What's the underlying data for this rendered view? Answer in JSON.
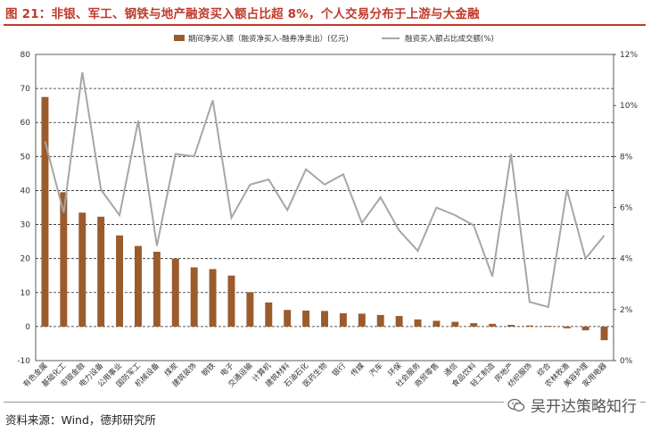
{
  "figure": {
    "title": "图 21：非银、军工、钢铁与地产融资买入额占比超 8%，个人交易分布于上游与大金融",
    "source": "资料来源：Wind，德邦研究所",
    "watermark": "吴开达策略知行",
    "watermark_icon": "wechat-icon"
  },
  "chart_data": {
    "type": "bar",
    "title": "",
    "categories": [
      "有色金属",
      "基础化工",
      "非银金融",
      "电力设备",
      "公用事业",
      "国防军工",
      "机械设备",
      "煤炭",
      "建筑装饰",
      "钢铁",
      "电子",
      "交通运输",
      "计算机",
      "建筑材料",
      "石油石化",
      "医药生物",
      "银行",
      "传媒",
      "汽车",
      "环保",
      "社会服务",
      "商贸零售",
      "通信",
      "食品饮料",
      "轻工制造",
      "房地产",
      "纺织服饰",
      "综合",
      "农林牧渔",
      "美容护理",
      "家用电器"
    ],
    "series": [
      {
        "name": "期间净买入额（融资净买入-融券净卖出）(亿元)",
        "type": "bar",
        "axis": "left",
        "color": "#9c5b2c",
        "values": [
          67.5,
          39.5,
          33.5,
          32.3,
          26.8,
          23.7,
          22.0,
          20.0,
          17.4,
          16.9,
          15.0,
          10.1,
          7.1,
          4.9,
          4.7,
          4.6,
          3.9,
          3.8,
          3.4,
          3.1,
          2.1,
          1.7,
          1.4,
          1.0,
          0.8,
          0.5,
          0.3,
          0.2,
          -0.5,
          -1.1,
          -4.0
        ]
      },
      {
        "name": "融资买入额占比成交额(%)",
        "type": "line",
        "axis": "right",
        "color": "#a6a6a6",
        "values": [
          8.6,
          5.8,
          11.3,
          6.7,
          5.7,
          9.4,
          4.5,
          8.1,
          8.0,
          10.2,
          5.6,
          6.9,
          7.1,
          5.9,
          7.5,
          6.9,
          7.3,
          5.4,
          6.4,
          5.1,
          4.3,
          6.0,
          5.7,
          5.3,
          3.3,
          8.1,
          2.3,
          2.1,
          6.7,
          4.0,
          4.9
        ]
      }
    ],
    "y_left": {
      "min": -10,
      "max": 80,
      "step": 10,
      "ticks": [
        "-10",
        "0",
        "10",
        "20",
        "30",
        "40",
        "50",
        "60",
        "70",
        "80"
      ]
    },
    "y_right": {
      "min": 0,
      "max": 12,
      "step": 2,
      "ticks": [
        "0%",
        "2%",
        "4%",
        "6%",
        "8%",
        "10%",
        "12%"
      ]
    },
    "grid": "horizontal-dashed",
    "legend_position": "top-center"
  }
}
